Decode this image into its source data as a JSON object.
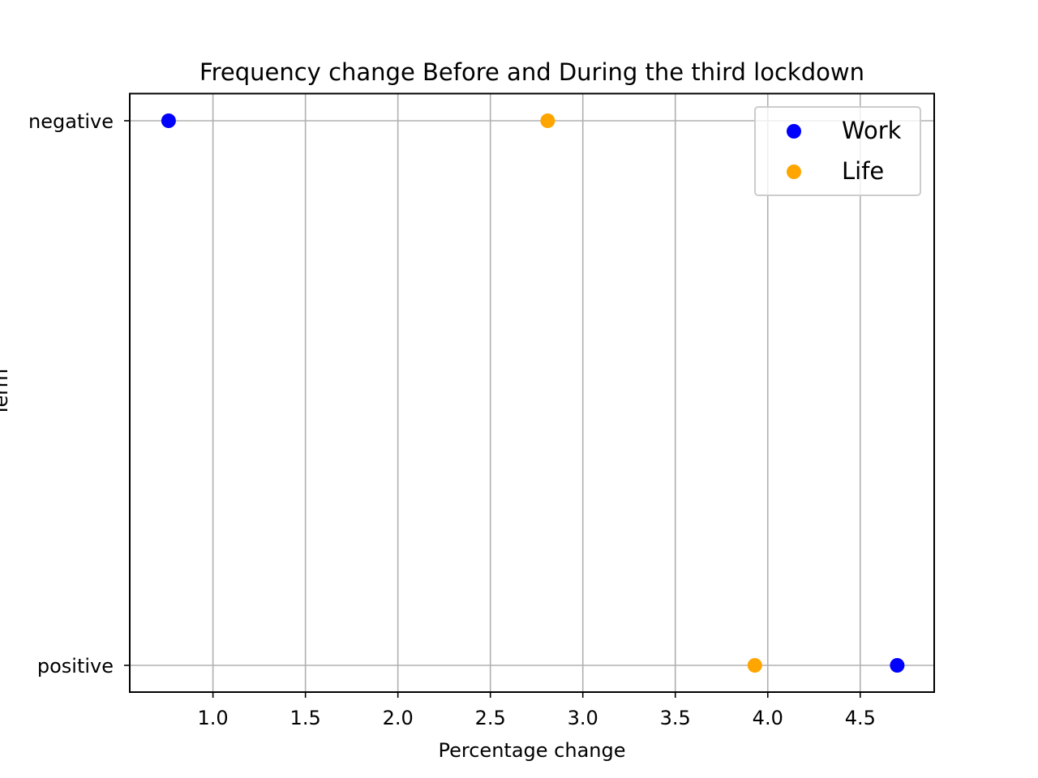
{
  "chart_data": {
    "type": "scatter",
    "title": "Frequency change Before and During the third lockdown",
    "xlabel": "Percentage change",
    "ylabel": "Term",
    "xlim": [
      0.55,
      4.9
    ],
    "x_ticks": [
      "1.0",
      "1.5",
      "2.0",
      "2.5",
      "3.0",
      "3.5",
      "4.0",
      "4.5"
    ],
    "x_tick_values": [
      1.0,
      1.5,
      2.0,
      2.5,
      3.0,
      3.5,
      4.0,
      4.5
    ],
    "y_categories": [
      "negative",
      "positive"
    ],
    "grid": true,
    "legend_position": "top-right",
    "series": [
      {
        "name": "Work",
        "color": "#0000ff",
        "points": [
          {
            "x": 0.76,
            "y": "negative"
          },
          {
            "x": 4.7,
            "y": "positive"
          }
        ]
      },
      {
        "name": "Life",
        "color": "#ffa500",
        "points": [
          {
            "x": 2.81,
            "y": "negative"
          },
          {
            "x": 3.93,
            "y": "positive"
          }
        ]
      }
    ]
  }
}
